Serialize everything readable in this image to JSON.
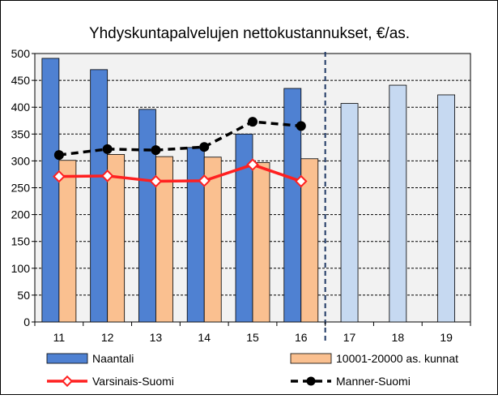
{
  "chart_data": {
    "title": "Yhdyskuntapalvelujen nettokustannukset, €/as.",
    "type": "bar",
    "categories": [
      "11",
      "12",
      "13",
      "14",
      "15",
      "16",
      "17",
      "18",
      "19"
    ],
    "ylim": [
      0,
      500
    ],
    "yticks": [
      0,
      50,
      100,
      150,
      200,
      250,
      300,
      350,
      400,
      450,
      500
    ],
    "grid": true,
    "divider_after_category": "16",
    "series": [
      {
        "name": "Naantali",
        "kind": "bar",
        "color": "#4f81d2",
        "forecast_color": "#c6d9f1",
        "forecast_from_index": 6,
        "values": [
          491,
          470,
          396,
          325,
          350,
          435,
          407,
          441,
          423
        ]
      },
      {
        "name": "10001-20000 as. kunnat",
        "kind": "bar",
        "color": "#fac090",
        "values": [
          301,
          312,
          308,
          307,
          297,
          304,
          null,
          null,
          null
        ]
      },
      {
        "name": "Varsinais-Suomi",
        "kind": "line",
        "color": "#ff2020",
        "values": [
          271,
          272,
          262,
          263,
          293,
          262,
          null,
          null,
          null
        ]
      },
      {
        "name": "Manner-Suomi",
        "kind": "line",
        "color": "#000000",
        "values": [
          311,
          322,
          320,
          326,
          373,
          365,
          null,
          null,
          null
        ]
      }
    ],
    "legend": "bottom"
  }
}
